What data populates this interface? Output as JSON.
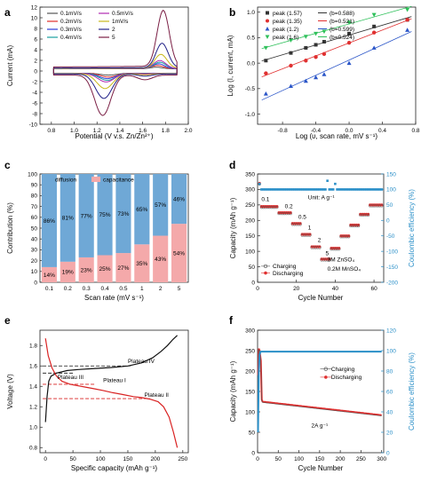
{
  "chart_data": [
    {
      "panel": "a",
      "type": "line",
      "xlabel": "Potential (V v.s. Zn/Zn²⁺)",
      "ylabel": "Current (mA)",
      "xlim": [
        0.7,
        2.0
      ],
      "ylim": [
        -10,
        12
      ],
      "xticks": [
        "0.8",
        "1.0",
        "1.2",
        "1.4",
        "1.6",
        "1.8",
        "2.0"
      ],
      "yticks": [
        "-10",
        "-8",
        "-6",
        "-4",
        "-2",
        "0",
        "2",
        "4",
        "6",
        "8",
        "10",
        "12"
      ],
      "legend": [
        "0.1mV/s",
        "0.2mV/s",
        "0.3mV/s",
        "0.4mV/s",
        "0.5mV/s",
        "1mV/s",
        "2",
        "5"
      ],
      "legend_position": "top-left",
      "series": [
        {
          "name": "0.1mV/s",
          "color": "#555555",
          "ox": 1.72,
          "ap": 0.3,
          "rx": 1.3,
          "cp": -0.35
        },
        {
          "name": "0.2mV/s",
          "color": "#e0302a",
          "ox": 1.73,
          "ap": 0.6,
          "rx": 1.3,
          "cp": -0.7
        },
        {
          "name": "0.3mV/s",
          "color": "#2a3ad8",
          "ox": 1.74,
          "ap": 0.9,
          "rx": 1.29,
          "cp": -1.0
        },
        {
          "name": "0.4mV/s",
          "color": "#19a0a0",
          "ox": 1.75,
          "ap": 1.2,
          "rx": 1.29,
          "cp": -1.3
        },
        {
          "name": "0.5mV/s",
          "color": "#b02ab0",
          "ox": 1.75,
          "ap": 1.5,
          "rx": 1.28,
          "cp": -1.6
        },
        {
          "name": "1mV/s",
          "color": "#c8b81c",
          "ox": 1.76,
          "ap": 2.6,
          "rx": 1.27,
          "cp": -2.8
        },
        {
          "name": "2",
          "color": "#222288",
          "ox": 1.77,
          "ap": 4.6,
          "rx": 1.26,
          "cp": -4.6
        },
        {
          "name": "5",
          "color": "#7a1e44",
          "ox": 1.78,
          "ap": 10.5,
          "rx": 1.25,
          "cp": -7.6
        }
      ]
    },
    {
      "panel": "b",
      "type": "scatter",
      "xlabel": "Log (υ, scan rate, mV s⁻¹)",
      "ylabel": "Log (I, current, mA)",
      "xlim": [
        -1.1,
        0.8
      ],
      "ylim": [
        -1.2,
        1.1
      ],
      "xticks": [
        "-0.8",
        "-0.4",
        "0.0",
        "0.4",
        "0.8"
      ],
      "yticks": [
        "-1.0",
        "-0.5",
        "0.0",
        "0.5",
        "1.0"
      ],
      "legend": [
        "peak (1.57)",
        "peak (1.35)",
        "peak (1.2)",
        "peak (1.6)",
        "(b=0.588)",
        "(b=0.521)",
        "(b=0.599)",
        "(b=0.524)"
      ],
      "legend_position": "top-left",
      "x": [
        -1.0,
        -0.7,
        -0.52,
        -0.4,
        -0.3,
        0.0,
        0.3,
        0.7
      ],
      "series": [
        {
          "name": "peak (1.57)",
          "color": "#333333",
          "marker": "square",
          "values": [
            0.05,
            0.2,
            0.3,
            0.36,
            0.42,
            0.58,
            0.72,
            0.85
          ]
        },
        {
          "name": "peak (1.35)",
          "color": "#e03030",
          "marker": "circle",
          "values": [
            -0.2,
            -0.05,
            0.05,
            0.12,
            0.18,
            0.4,
            0.6,
            0.85
          ]
        },
        {
          "name": "peak (1.2)",
          "color": "#2a55c8",
          "marker": "triangle-up",
          "values": [
            -0.6,
            -0.45,
            -0.35,
            -0.28,
            -0.22,
            0.0,
            0.3,
            0.65
          ]
        },
        {
          "name": "peak (1.6)",
          "color": "#2ec05a",
          "marker": "triangle-down",
          "values": [
            0.3,
            0.45,
            0.52,
            0.58,
            0.62,
            0.8,
            0.95,
            1.05
          ]
        }
      ]
    },
    {
      "panel": "c",
      "type": "bar",
      "xlabel": "Scan rate (mV s⁻¹)",
      "ylabel": "Contribution (%)",
      "ylim": [
        0,
        100
      ],
      "yticks": [
        "0",
        "10",
        "20",
        "30",
        "40",
        "50",
        "60",
        "70",
        "80",
        "90",
        "100"
      ],
      "categories": [
        "0.1",
        "0.2",
        "0.3",
        "0.4",
        "0.5",
        "1",
        "2",
        "5"
      ],
      "legend": [
        "diffusion",
        "capacitance"
      ],
      "series": [
        {
          "name": "capacitance",
          "color": "#f4a9aa",
          "values": [
            14,
            19,
            23,
            25,
            27,
            35,
            43,
            54
          ],
          "labels": [
            "14%",
            "19%",
            "23%",
            "25%",
            "27%",
            "35%",
            "43%",
            "54%"
          ]
        },
        {
          "name": "diffusion",
          "color": "#6fa8d6",
          "values": [
            86,
            81,
            77,
            75,
            73,
            65,
            57,
            46
          ],
          "labels": [
            "86%",
            "81%",
            "77%",
            "75%",
            "73%",
            "65%",
            "57%",
            "46%"
          ]
        }
      ]
    },
    {
      "panel": "d",
      "type": "scatter",
      "xlabel": "Cycle Number",
      "ylabel": "Capacity (mAh g⁻¹)",
      "y2label": "Coulombic efficiency (%)",
      "xlim": [
        0,
        65
      ],
      "ylim": [
        0,
        350
      ],
      "y2lim": [
        -200,
        150
      ],
      "xticks": [
        "0",
        "20",
        "40",
        "60"
      ],
      "yticks": [
        "0",
        "50",
        "100",
        "150",
        "200",
        "250",
        "300",
        "350"
      ],
      "y2ticks": [
        "-200",
        "-150",
        "-100",
        "-50",
        "0",
        "50",
        "100",
        "150"
      ],
      "legend": [
        "Charging",
        "Discharging"
      ],
      "annotations": [
        "Unit: A g⁻¹",
        "0.1",
        "0.2",
        "0.5",
        "1",
        "2",
        "5",
        "3M ZnSO₄",
        "0.2M MnSO₄"
      ],
      "segments": [
        {
          "from": 1,
          "to": 10,
          "capacity": 245
        },
        {
          "from": 11,
          "to": 17,
          "capacity": 225
        },
        {
          "from": 18,
          "to": 22,
          "capacity": 190
        },
        {
          "from": 23,
          "to": 27,
          "capacity": 155
        },
        {
          "from": 28,
          "to": 32,
          "capacity": 115
        },
        {
          "from": 33,
          "to": 37,
          "capacity": 75
        },
        {
          "from": 38,
          "to": 42,
          "capacity": 110
        },
        {
          "from": 43,
          "to": 47,
          "capacity": 150
        },
        {
          "from": 48,
          "to": 52,
          "capacity": 185
        },
        {
          "from": 53,
          "to": 57,
          "capacity": 220
        },
        {
          "from": 58,
          "to": 64,
          "capacity": 250
        }
      ],
      "efficiency": 100
    },
    {
      "panel": "e",
      "type": "line",
      "xlabel": "Specific capacity (mAh g⁻¹)",
      "ylabel": "Voltage (V)",
      "xlim": [
        -10,
        260
      ],
      "ylim": [
        0.75,
        1.95
      ],
      "xticks": [
        "0",
        "50",
        "100",
        "150",
        "200",
        "250"
      ],
      "yticks": [
        "0.8",
        "1.0",
        "1.2",
        "1.4",
        "1.6",
        "1.8"
      ],
      "annotations": [
        "Plateau IV",
        "Plateau III",
        "Plateau I",
        "Plateau II"
      ],
      "series": [
        {
          "name": "charge",
          "color": "#111111",
          "x": [
            0,
            3,
            6,
            10,
            20,
            40,
            60,
            90,
            120,
            150,
            175,
            195,
            210,
            222,
            232,
            240
          ],
          "values": [
            1.05,
            1.3,
            1.45,
            1.5,
            1.53,
            1.555,
            1.565,
            1.575,
            1.585,
            1.6,
            1.63,
            1.68,
            1.74,
            1.8,
            1.86,
            1.9
          ]
        },
        {
          "name": "discharge",
          "color": "#d92222",
          "x": [
            0,
            5,
            12,
            20,
            30,
            45,
            60,
            75,
            90,
            105,
            120,
            140,
            160,
            175,
            190,
            205,
            215,
            225,
            233,
            240
          ],
          "values": [
            1.87,
            1.7,
            1.58,
            1.5,
            1.45,
            1.42,
            1.405,
            1.39,
            1.375,
            1.36,
            1.34,
            1.32,
            1.3,
            1.29,
            1.275,
            1.25,
            1.2,
            1.1,
            0.95,
            0.8
          ]
        }
      ],
      "reference_lines": [
        {
          "y": 1.6,
          "color": "#111111",
          "x": [
            -5,
            155
          ]
        },
        {
          "y": 1.53,
          "color": "#111111",
          "x": [
            -5,
            50
          ]
        },
        {
          "y": 1.42,
          "color": "#d92222",
          "x": [
            -5,
            90
          ]
        },
        {
          "y": 1.28,
          "color": "#d92222",
          "x": [
            -5,
            190
          ]
        }
      ]
    },
    {
      "panel": "f",
      "type": "scatter",
      "xlabel": "Cycle Number",
      "ylabel": "Capacity (mAh g⁻¹)",
      "y2label": "Coulombic efficiency (%)",
      "xlim": [
        0,
        305
      ],
      "ylim": [
        0,
        300
      ],
      "y2lim": [
        0,
        120
      ],
      "xticks": [
        "0",
        "50",
        "100",
        "150",
        "200",
        "250",
        "300"
      ],
      "yticks": [
        "0",
        "50",
        "100",
        "150",
        "200",
        "250",
        "300"
      ],
      "y2ticks": [
        "0",
        "20",
        "40",
        "60",
        "80",
        "100",
        "120"
      ],
      "legend": [
        "Charging",
        "Discharging"
      ],
      "annotations": [
        "2A g⁻¹"
      ],
      "capacity_start": [
        [
          1,
          190
        ],
        [
          3,
          255
        ],
        [
          5,
          250
        ],
        [
          8,
          225
        ],
        [
          10,
          130
        ]
      ],
      "capacity_trend": {
        "from": [
          12,
          125
        ],
        "to": [
          300,
          92
        ]
      },
      "efficiency": 99
    }
  ],
  "panel_labels": [
    "a",
    "b",
    "c",
    "d",
    "e",
    "f"
  ]
}
